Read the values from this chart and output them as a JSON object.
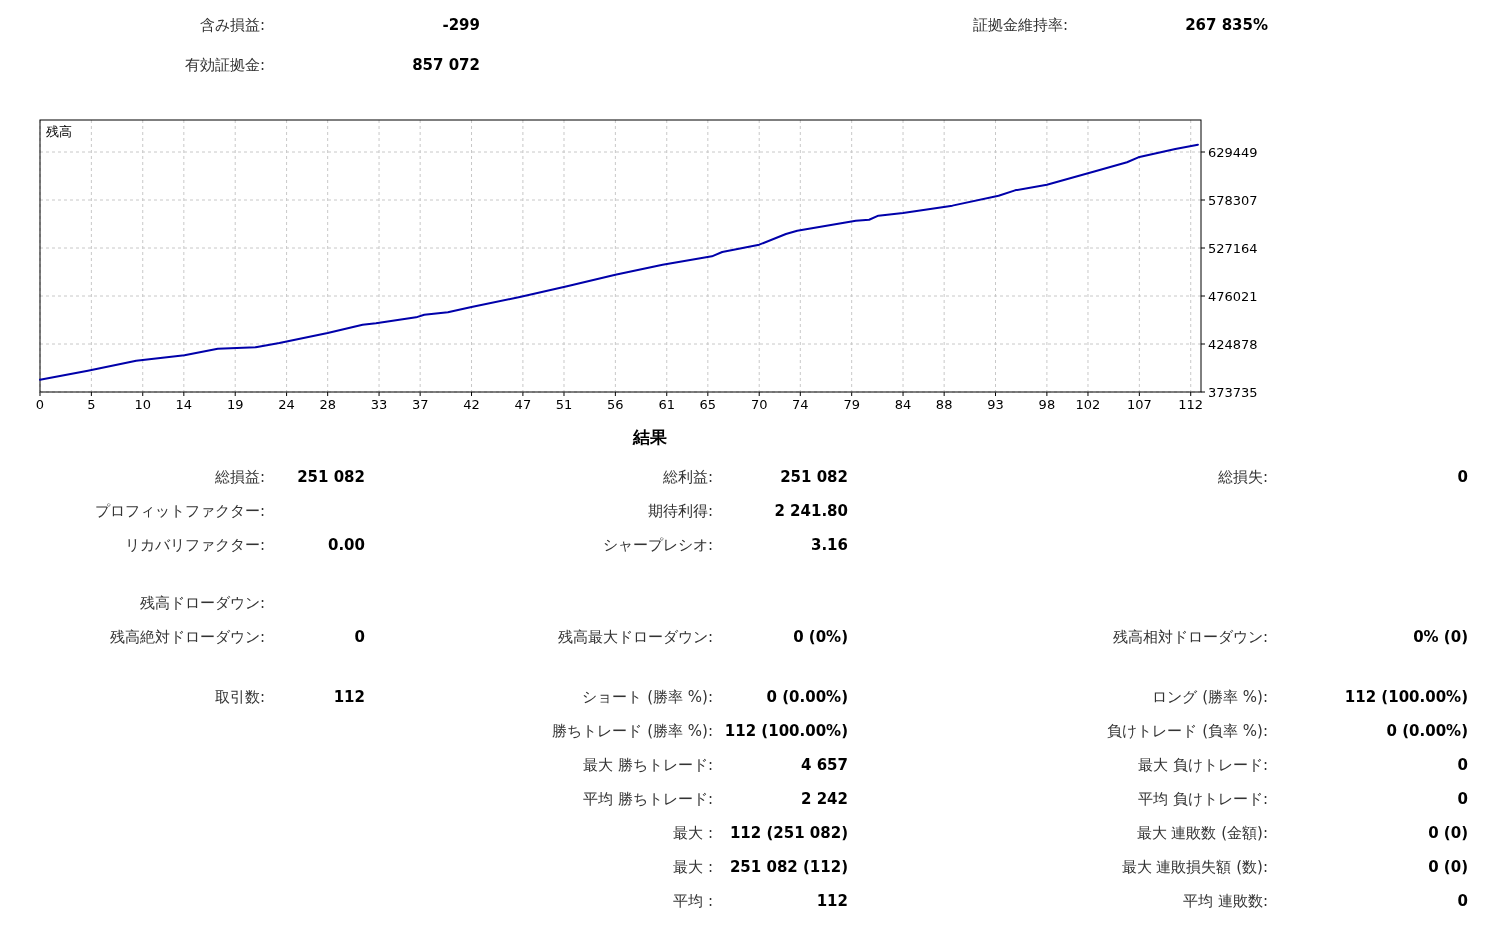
{
  "chart_data": {
    "type": "line",
    "ylabel": "残高",
    "x": [
      0,
      4.66,
      9.36,
      14.06,
      17.3,
      21,
      23.3,
      28,
      31.4,
      32.7,
      36.6,
      37.4,
      39.7,
      42,
      46.7,
      51.3,
      56,
      60.6,
      65.4,
      66.4,
      70,
      72.6,
      73.7,
      79.4,
      80.7,
      81.6,
      84,
      88.8,
      93.3,
      94.9,
      98,
      102.7,
      105.8,
      106.9,
      110.5,
      112.7
    ],
    "series": [
      {
        "color": "#0000aa",
        "values": [
          386800,
          396400,
          407100,
          412800,
          419900,
          421400,
          425900,
          436600,
          445400,
          446900,
          453300,
          456100,
          458600,
          464300,
          474900,
          486300,
          498700,
          509400,
          518300,
          522900,
          530700,
          542100,
          545600,
          556200,
          557300,
          561600,
          564500,
          572300,
          582900,
          588600,
          594600,
          608900,
          618500,
          623800,
          632600,
          637200
        ]
      }
    ],
    "xlim": [
      0,
      113
    ],
    "ylim": [
      373735,
      663550
    ],
    "xticks": [
      0,
      5,
      10,
      14,
      19,
      24,
      28,
      33,
      37,
      42,
      47,
      51,
      56,
      61,
      65,
      70,
      74,
      79,
      84,
      88,
      93,
      98,
      102,
      107,
      112
    ],
    "yticks": [
      373735,
      424878,
      476021,
      527164,
      578307,
      629449
    ],
    "grid": true,
    "annotations": [
      "含み損益:",
      "-299",
      "証拠金維持率:",
      "267 835%",
      "有効証拠金:",
      "857 072",
      "結果",
      "総損益:",
      "251 082",
      "総利益:",
      "251 082",
      "総損失:",
      "0",
      "プロフィットファクター:",
      "期待利得:",
      "2 241.80",
      "リカバリファクター:",
      "0.00",
      "シャープレシオ:",
      "3.16",
      "残高ドローダウン:",
      "残高絶対ドローダウン:",
      "0",
      "残高最大ドローダウン:",
      "0 (0%)",
      "残高相対ドローダウン:",
      "0% (0)",
      "取引数:",
      "112",
      "ショート (勝率 %):",
      "0 (0.00%)",
      "ロング (勝率 %):",
      "112 (100.00%)",
      "勝ちトレード (勝率 %):",
      "112 (100.00%)",
      "負けトレード (負率 %):",
      "0 (0.00%)",
      "最大 勝ちトレード:",
      "4 657",
      "最大 負けトレード:",
      "0",
      "平均 勝ちトレード:",
      "2 242",
      "平均 負けトレード:",
      "0",
      "最大 :",
      "112 (251 082)",
      "最大 連敗数 (金額):",
      "0 (0)",
      "最大 :",
      "251 082 (112)",
      "最大 連敗損失額 (数):",
      "0 (0)",
      "平均 :",
      "112",
      "平均 連敗数:",
      "0"
    ]
  }
}
